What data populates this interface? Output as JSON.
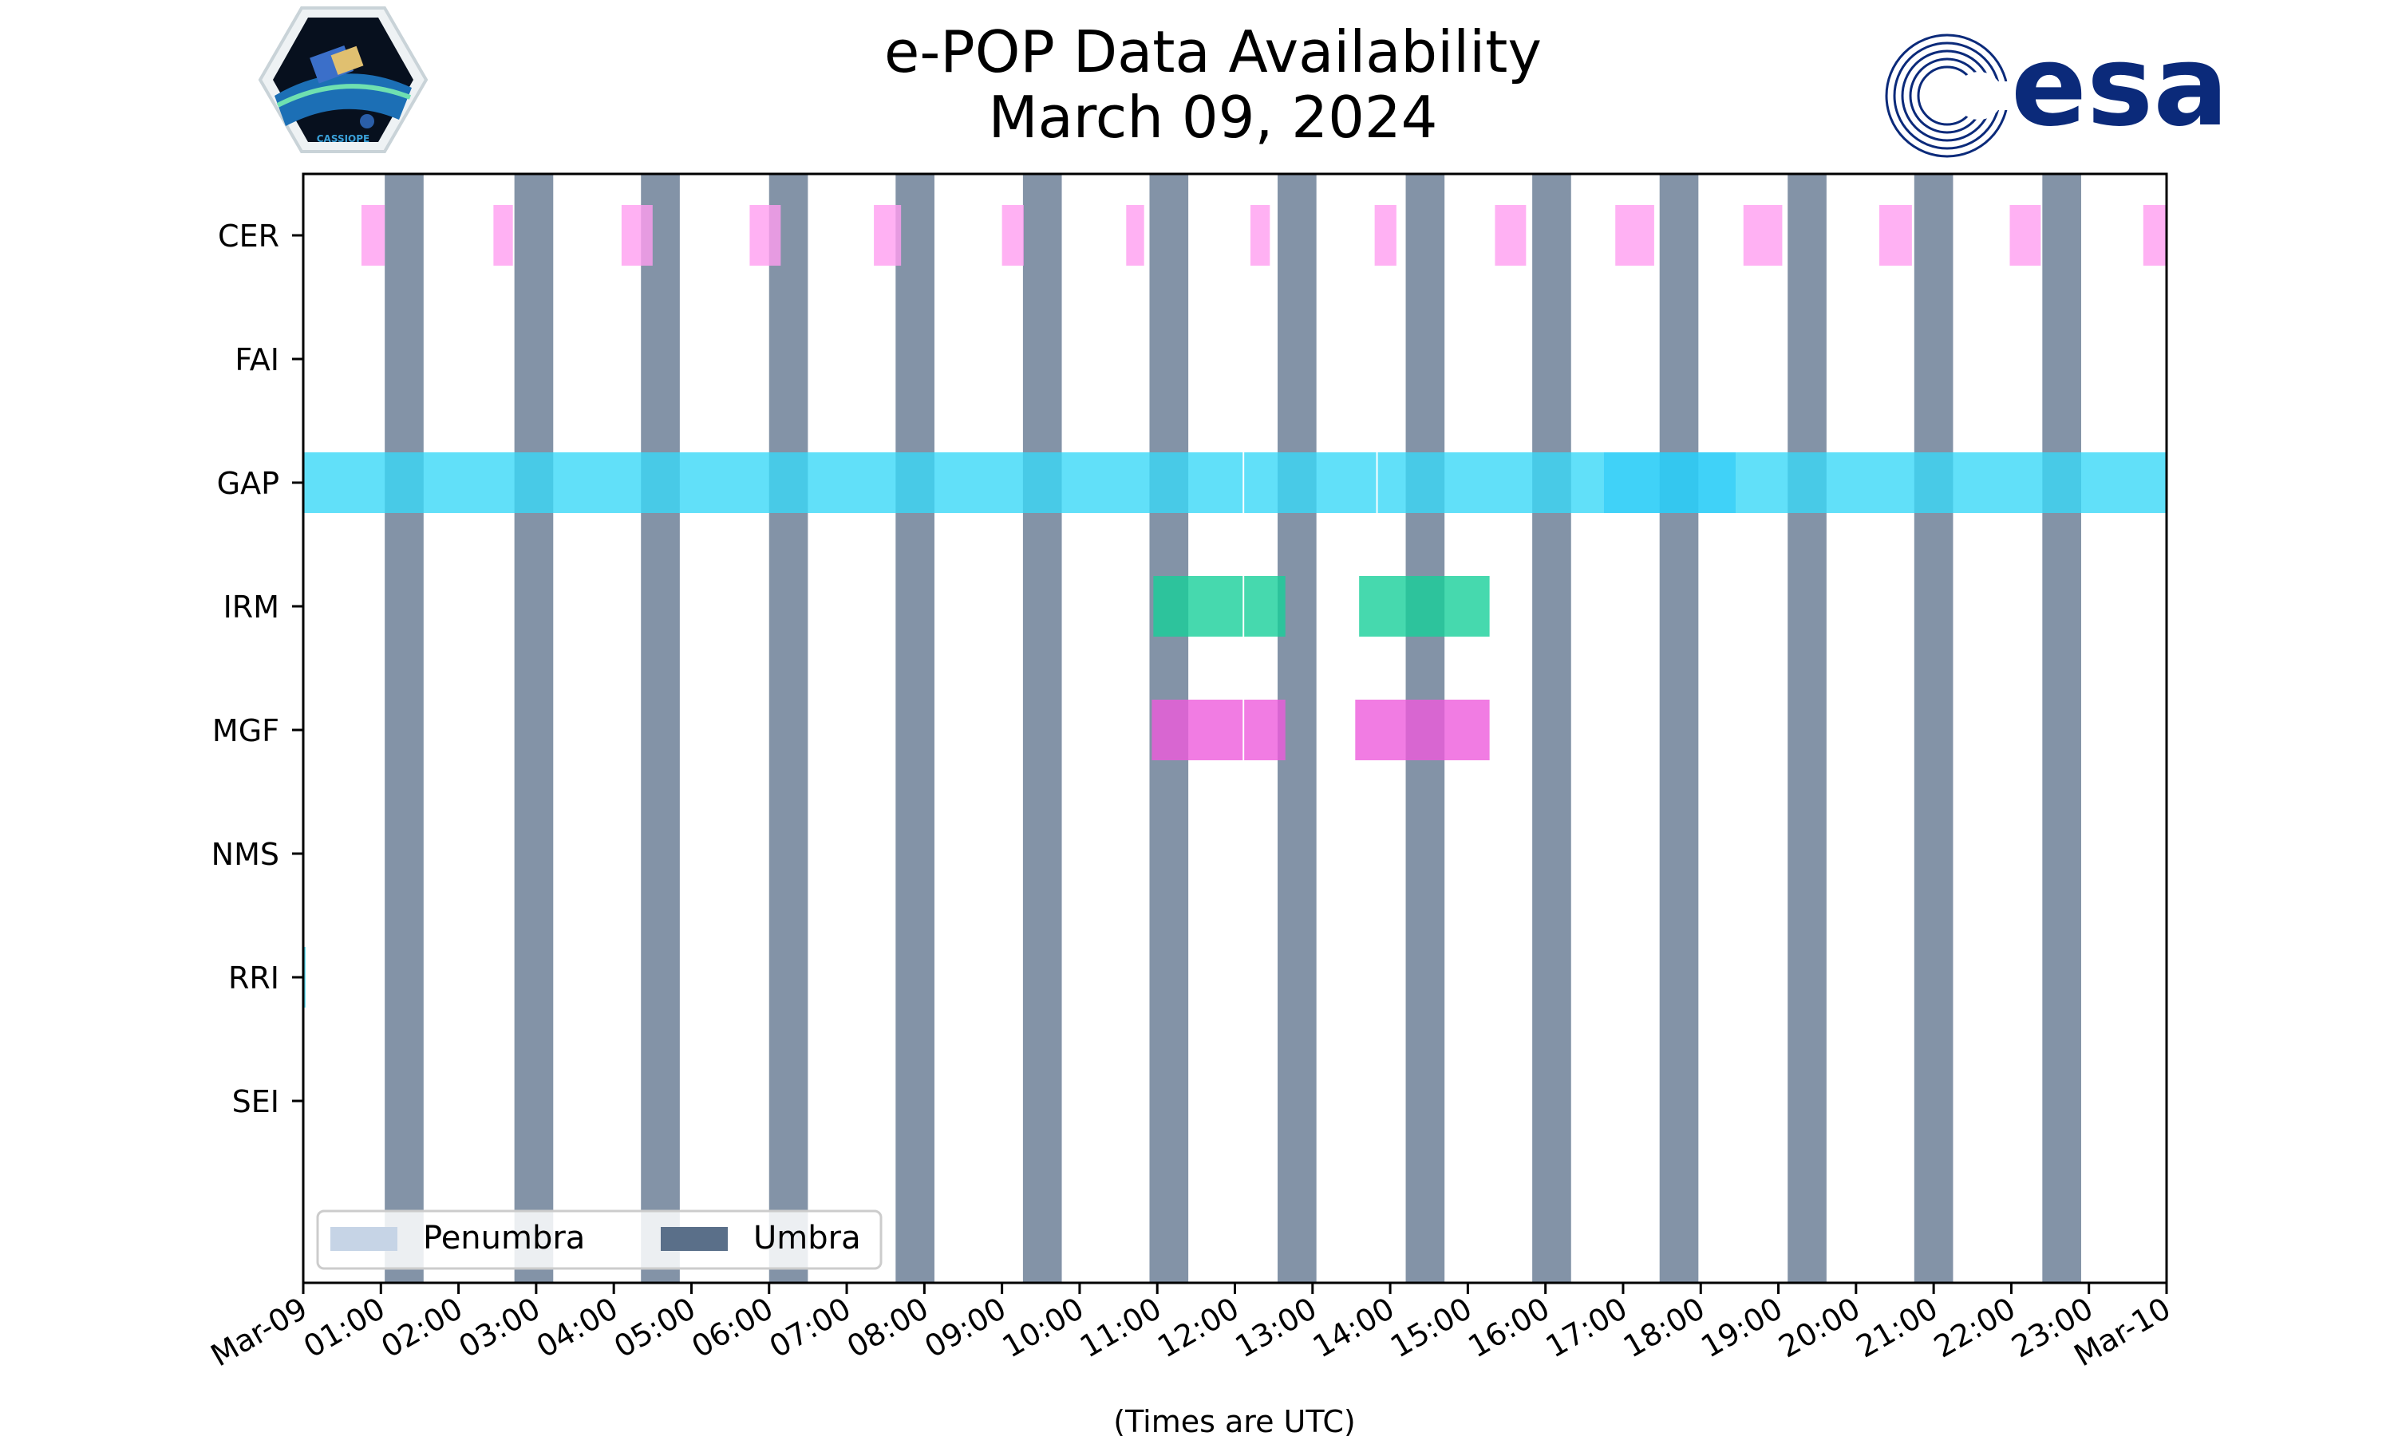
{
  "chart_data": {
    "type": "timeline",
    "title": [
      "e-POP Data Availability",
      "March 09, 2024"
    ],
    "xlabel": "(Times are UTC)",
    "xlim_hours": [
      0,
      24
    ],
    "xtick_labels": [
      "Mar-09",
      "01:00",
      "02:00",
      "03:00",
      "04:00",
      "05:00",
      "06:00",
      "07:00",
      "08:00",
      "09:00",
      "10:00",
      "11:00",
      "12:00",
      "13:00",
      "14:00",
      "15:00",
      "16:00",
      "17:00",
      "18:00",
      "19:00",
      "20:00",
      "21:00",
      "22:00",
      "23:00",
      "Mar-10"
    ],
    "instruments": [
      "CER",
      "FAI",
      "GAP",
      "IRM",
      "MGF",
      "NMS",
      "RRI",
      "SEI"
    ],
    "colors": {
      "umbra": "#5a6f89",
      "penumbra": "#c6d4e6",
      "CER": "#ff9ef0",
      "GAP": "#3ad8f8",
      "GAP_overlap": "#2bcdf7",
      "IRM": "#18cf9a",
      "MGF": "#ee5bdc",
      "RRI": "#3ad8f8"
    },
    "umbra_intervals": [
      [
        1.05,
        1.55
      ],
      [
        2.72,
        3.22
      ],
      [
        4.35,
        4.85
      ],
      [
        6.0,
        6.5
      ],
      [
        7.63,
        8.13
      ],
      [
        9.27,
        9.77
      ],
      [
        10.9,
        11.4
      ],
      [
        12.55,
        13.05
      ],
      [
        14.2,
        14.7
      ],
      [
        15.83,
        16.33
      ],
      [
        17.47,
        17.97
      ],
      [
        19.12,
        19.62
      ],
      [
        20.75,
        21.25
      ],
      [
        22.4,
        22.9
      ]
    ],
    "series": [
      {
        "name": "CER",
        "intervals": [
          [
            0.75,
            1.05
          ],
          [
            2.45,
            2.7
          ],
          [
            4.1,
            4.5
          ],
          [
            5.75,
            6.15
          ],
          [
            7.35,
            7.7
          ],
          [
            9.0,
            9.28
          ],
          [
            10.6,
            10.83
          ],
          [
            12.2,
            12.45
          ],
          [
            13.8,
            14.08
          ],
          [
            15.35,
            15.75
          ],
          [
            16.9,
            17.4
          ],
          [
            18.55,
            19.05
          ],
          [
            20.3,
            20.72
          ],
          [
            21.98,
            22.38
          ],
          [
            23.7,
            24.0
          ]
        ]
      },
      {
        "name": "FAI",
        "intervals": []
      },
      {
        "name": "GAP",
        "intervals": [
          [
            0.0,
            12.1
          ],
          [
            12.12,
            13.82
          ],
          [
            13.84,
            16.75
          ],
          [
            16.75,
            18.45
          ],
          [
            18.45,
            24.0
          ]
        ]
      },
      {
        "name": "IRM",
        "intervals": [
          [
            10.95,
            12.1
          ],
          [
            12.12,
            12.65
          ],
          [
            13.6,
            15.28
          ]
        ]
      },
      {
        "name": "MGF",
        "intervals": [
          [
            10.93,
            12.1
          ],
          [
            12.12,
            12.65
          ],
          [
            13.55,
            15.28
          ]
        ]
      },
      {
        "name": "NMS",
        "intervals": []
      },
      {
        "name": "RRI",
        "intervals": [
          [
            0.0,
            0.03
          ]
        ]
      },
      {
        "name": "SEI",
        "intervals": []
      }
    ],
    "legend": {
      "position": "lower-left",
      "entries": [
        {
          "label": "Penumbra",
          "color_key": "penumbra"
        },
        {
          "label": "Umbra",
          "color_key": "umbra"
        }
      ]
    },
    "logos": {
      "left": "CASSIOPE",
      "right": "esa"
    }
  }
}
